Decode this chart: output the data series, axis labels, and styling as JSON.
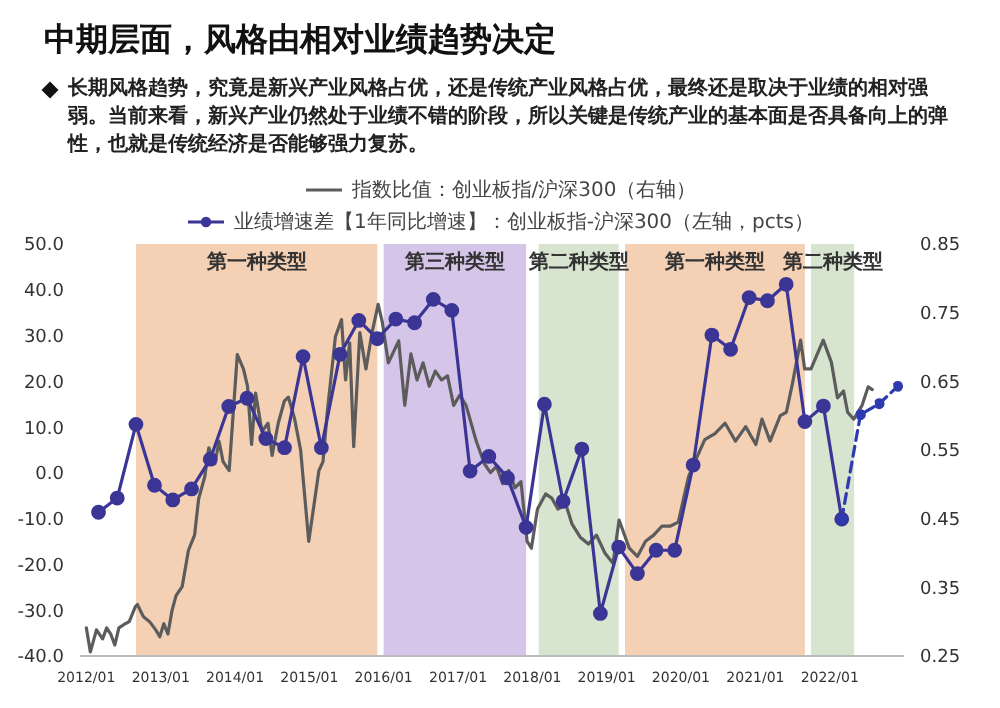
{
  "chart_data": {
    "type": "line",
    "title": "中期层面，风格由相对业绩趋势决定",
    "subtitle": "长期风格趋势，究竟是新兴产业风格占优，还是传统产业风格占优，最终还是取决于业绩的相对强弱。当前来看，新兴产业仍然处于业绩不错的阶段，所以关键是传统产业的基本面是否具备向上的弹性，也就是传统经济是否能够强力复苏。",
    "legend": "top",
    "xlim": [
      "2011-12",
      "2023-01"
    ],
    "xticks": [
      {
        "value": "2012-01",
        "label": "2012/01"
      },
      {
        "value": "2013-01",
        "label": "2013/01"
      },
      {
        "value": "2014-01",
        "label": "2014/01"
      },
      {
        "value": "2015-01",
        "label": "2015/01"
      },
      {
        "value": "2016-01",
        "label": "2016/01"
      },
      {
        "value": "2017-01",
        "label": "2017/01"
      },
      {
        "value": "2018-01",
        "label": "2018/01"
      },
      {
        "value": "2019-01",
        "label": "2019/01"
      },
      {
        "value": "2020-01",
        "label": "2020/01"
      },
      {
        "value": "2021-01",
        "label": "2021/01"
      },
      {
        "value": "2022-01",
        "label": "2022/01"
      }
    ],
    "ylim": [
      -40,
      50
    ],
    "yticks": [
      {
        "value": -40,
        "label": "-40.0"
      },
      {
        "value": -30,
        "label": "-30.0"
      },
      {
        "value": -20,
        "label": "-20.0"
      },
      {
        "value": -10,
        "label": "-10.0"
      },
      {
        "value": 0,
        "label": "0.0"
      },
      {
        "value": 10,
        "label": "10.0"
      },
      {
        "value": 20,
        "label": "20.0"
      },
      {
        "value": 30,
        "label": "30.0"
      },
      {
        "value": 40,
        "label": "40.0"
      },
      {
        "value": 50,
        "label": "50.0"
      }
    ],
    "y2lim": [
      0.25,
      0.85
    ],
    "y2ticks": [
      0.25,
      0.35,
      0.45,
      0.55,
      0.65,
      0.75,
      0.85
    ],
    "bands": [
      {
        "axis": "x",
        "from": "2012-09",
        "to": "2015-12",
        "label": "第一种类型",
        "color": "#f4d0b5"
      },
      {
        "axis": "x",
        "from": "2016-01",
        "to": "2017-12",
        "label": "第三种类型",
        "color": "#d5c5e8"
      },
      {
        "axis": "x",
        "from": "2018-02",
        "to": "2019-03",
        "label": "第二种类型",
        "color": "#d6e4d0"
      },
      {
        "axis": "x",
        "from": "2019-04",
        "to": "2021-09",
        "label": "第一种类型",
        "color": "#f4d0b5"
      },
      {
        "axis": "x",
        "from": "2021-10",
        "to": "2022-05",
        "label": "第二种类型",
        "color": "#d6e4d0"
      }
    ],
    "series": [
      {
        "name": "指数比值：创业板指/沪深300（右轴）",
        "axis": "y2",
        "color": "#5c5c5c",
        "marker": "none",
        "line_style": "solid",
        "x": [
          "2012-01-01",
          "2012-01-21",
          "2012-02-20",
          "2012-03-21",
          "2012-04-10",
          "2012-04-30",
          "2012-05-20",
          "2012-06-09",
          "2012-07-10",
          "2012-07-30",
          "2012-08-29",
          "2012-09-08",
          "2012-10-08",
          "2012-11-07",
          "2012-12-07",
          "2012-12-27",
          "2013-01-16",
          "2013-02-05",
          "2013-02-25",
          "2013-03-17",
          "2013-04-16",
          "2013-05-17",
          "2013-06-16",
          "2013-07-06",
          "2013-08-05",
          "2013-08-25",
          "2013-09-24",
          "2013-10-14",
          "2013-11-03",
          "2013-12-03",
          "2014-01-12",
          "2014-02-11",
          "2014-03-03",
          "2014-03-23",
          "2014-04-12",
          "2014-05-13",
          "2014-06-12",
          "2014-07-02",
          "2014-08-01",
          "2014-08-31",
          "2014-09-20",
          "2014-10-20",
          "2014-11-19",
          "2014-12-29",
          "2015-02-17",
          "2015-03-09",
          "2015-03-30",
          "2015-05-09",
          "2015-06-08",
          "2015-06-28",
          "2015-07-18",
          "2015-08-07",
          "2015-09-06",
          "2015-10-06",
          "2015-11-05",
          "2015-12-05",
          "2015-12-25",
          "2016-01-24",
          "2016-02-14",
          "2016-03-15",
          "2016-04-14",
          "2016-05-14",
          "2016-06-13",
          "2016-07-13",
          "2016-08-12",
          "2016-09-11",
          "2016-10-11",
          "2016-11-10",
          "2016-12-10",
          "2017-01-09",
          "2017-02-09",
          "2017-03-31",
          "2017-05-10",
          "2017-06-09",
          "2017-07-09",
          "2017-08-08",
          "2017-09-07",
          "2017-10-07",
          "2017-11-06",
          "2017-12-06",
          "2017-12-27",
          "2018-01-26",
          "2018-03-07",
          "2018-04-06",
          "2018-05-06",
          "2018-06-15",
          "2018-07-15",
          "2018-08-24",
          "2018-10-03",
          "2018-11-12",
          "2018-12-23",
          "2019-02-01",
          "2019-03-03",
          "2019-04-22",
          "2019-06-01",
          "2019-07-11",
          "2019-08-20",
          "2019-09-29",
          "2019-11-08",
          "2019-12-19",
          "2020-02-07",
          "2020-03-08",
          "2020-04-27",
          "2020-06-16",
          "2020-08-05",
          "2020-09-25",
          "2020-11-14",
          "2021-01-03",
          "2021-02-02",
          "2021-03-14",
          "2021-05-03",
          "2021-06-02",
          "2021-07-02",
          "2021-08-11",
          "2021-08-31",
          "2021-10-01",
          "2021-11-30",
          "2022-01-09",
          "2022-02-08",
          "2022-03-10",
          "2022-03-30",
          "2022-04-29",
          "2022-06-09",
          "2022-07-09",
          "2022-07-29"
        ],
        "values": [
          0.291,
          0.256,
          0.288,
          0.275,
          0.291,
          0.282,
          0.266,
          0.291,
          0.297,
          0.3,
          0.322,
          0.325,
          0.307,
          0.3,
          0.288,
          0.278,
          0.297,
          0.282,
          0.316,
          0.338,
          0.351,
          0.404,
          0.426,
          0.479,
          0.511,
          0.553,
          0.53,
          0.563,
          0.533,
          0.52,
          0.689,
          0.668,
          0.643,
          0.558,
          0.633,
          0.577,
          0.589,
          0.542,
          0.589,
          0.621,
          0.627,
          0.596,
          0.55,
          0.417,
          0.52,
          0.533,
          0.605,
          0.715,
          0.74,
          0.652,
          0.706,
          0.555,
          0.721,
          0.668,
          0.721,
          0.762,
          0.737,
          0.677,
          0.69,
          0.709,
          0.615,
          0.69,
          0.652,
          0.677,
          0.643,
          0.665,
          0.652,
          0.658,
          0.615,
          0.63,
          0.615,
          0.563,
          0.53,
          0.517,
          0.526,
          0.501,
          0.52,
          0.495,
          0.504,
          0.417,
          0.407,
          0.464,
          0.486,
          0.48,
          0.464,
          0.47,
          0.442,
          0.423,
          0.413,
          0.426,
          0.4,
          0.385,
          0.448,
          0.407,
          0.395,
          0.417,
          0.426,
          0.439,
          0.439,
          0.445,
          0.511,
          0.532,
          0.565,
          0.574,
          0.589,
          0.563,
          0.584,
          0.558,
          0.595,
          0.563,
          0.6,
          0.605,
          0.647,
          0.71,
          0.668,
          0.668,
          0.71,
          0.678,
          0.626,
          0.636,
          0.605,
          0.595,
          0.615,
          0.642,
          0.638
        ]
      },
      {
        "name": "业绩增速差【1年同比增速】：创业板指-沪深300（左轴，pcts）",
        "axis": "y",
        "color": "#3b3596",
        "marker": "circle",
        "line_style": "solid",
        "x": [
          "2012-03",
          "2012-06",
          "2012-09",
          "2012-12",
          "2013-03",
          "2013-06",
          "2013-09",
          "2013-12",
          "2014-03",
          "2014-06",
          "2014-09",
          "2014-12",
          "2015-03",
          "2015-06",
          "2015-09",
          "2015-12",
          "2016-03",
          "2016-06",
          "2016-09",
          "2016-12",
          "2017-03",
          "2017-06",
          "2017-09",
          "2017-12",
          "2018-03",
          "2018-06",
          "2018-09",
          "2018-12",
          "2019-03",
          "2019-06",
          "2019-09",
          "2019-12",
          "2020-03",
          "2020-06",
          "2020-09",
          "2020-12",
          "2021-03",
          "2021-06",
          "2021-09",
          "2021-12",
          "2022-03"
        ],
        "values": [
          -8.6,
          -5.5,
          10.6,
          -2.7,
          -5.9,
          -3.5,
          3.0,
          14.5,
          16.3,
          7.5,
          5.5,
          25.4,
          5.5,
          25.9,
          33.3,
          29.3,
          33.6,
          32.8,
          37.9,
          35.5,
          0.4,
          3.6,
          -1.1,
          -11.9,
          15.0,
          -6.2,
          5.2,
          -30.7,
          -16.2,
          -22.0,
          -16.9,
          -16.9,
          1.7,
          30.1,
          27.0,
          38.3,
          37.6,
          41.2,
          11.2,
          14.6,
          -10.1
        ]
      },
      {
        "axis": "y",
        "color": "#2e3bb0",
        "marker": "circle",
        "line_style": "dashed",
        "x": [
          "2022-03",
          "2022-06",
          "2022-09",
          "2022-12"
        ],
        "values": [
          -10.1,
          12.7,
          15.1,
          18.9
        ]
      }
    ]
  }
}
